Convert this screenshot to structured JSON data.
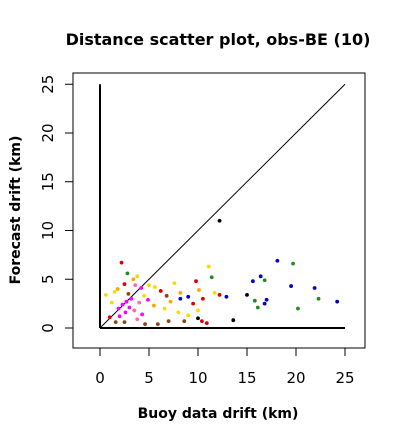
{
  "chart_data": {
    "type": "scatter",
    "title": "Distance scatter plot, obs-BE (10)",
    "xlabel": "Buoy data drift (km)",
    "ylabel": "Forecast drift (km)",
    "xlim": [
      -2.5,
      27
    ],
    "ylim": [
      -2.5,
      26
    ],
    "xticks": [
      0,
      5,
      10,
      15,
      20,
      25
    ],
    "yticks": [
      0,
      5,
      10,
      15,
      20,
      25
    ],
    "grid": false,
    "legend": "none",
    "reference_lines": [
      {
        "kind": "diagonal",
        "from": [
          0,
          0
        ],
        "to": [
          25,
          25
        ]
      },
      {
        "kind": "vertical-axis",
        "from": [
          0,
          0
        ],
        "to": [
          0,
          25
        ]
      },
      {
        "kind": "horizontal-axis",
        "from": [
          0,
          0
        ],
        "to": [
          25,
          0
        ]
      }
    ],
    "points": [
      {
        "x": 2.2,
        "y": 6.7,
        "color": "#dd0000"
      },
      {
        "x": 2.8,
        "y": 5.6,
        "color": "#228b22"
      },
      {
        "x": 2.5,
        "y": 4.5,
        "color": "#dd0000"
      },
      {
        "x": 1.8,
        "y": 4.0,
        "color": "#ffa500"
      },
      {
        "x": 1.5,
        "y": 3.7,
        "color": "#ffd700"
      },
      {
        "x": 2.9,
        "y": 3.5,
        "color": "#8b4513"
      },
      {
        "x": 3.4,
        "y": 5.0,
        "color": "#ffa500"
      },
      {
        "x": 3.8,
        "y": 5.3,
        "color": "#ffd700"
      },
      {
        "x": 3.6,
        "y": 4.4,
        "color": "#ff69b4"
      },
      {
        "x": 4.2,
        "y": 4.1,
        "color": "#ff00ff"
      },
      {
        "x": 3.2,
        "y": 3.0,
        "color": "#ff00ff"
      },
      {
        "x": 2.7,
        "y": 2.7,
        "color": "#ff00ff"
      },
      {
        "x": 2.3,
        "y": 2.4,
        "color": "#ff00ff"
      },
      {
        "x": 1.9,
        "y": 2.0,
        "color": "#ff00ff"
      },
      {
        "x": 3.0,
        "y": 2.1,
        "color": "#ff00ff"
      },
      {
        "x": 2.6,
        "y": 1.6,
        "color": "#ff00ff"
      },
      {
        "x": 2.0,
        "y": 1.2,
        "color": "#ff00ff"
      },
      {
        "x": 3.5,
        "y": 1.8,
        "color": "#ff69b4"
      },
      {
        "x": 4.0,
        "y": 2.6,
        "color": "#ff69b4"
      },
      {
        "x": 4.5,
        "y": 3.3,
        "color": "#ffd700"
      },
      {
        "x": 4.9,
        "y": 2.9,
        "color": "#ff00ff"
      },
      {
        "x": 4.3,
        "y": 1.4,
        "color": "#ff00ff"
      },
      {
        "x": 3.8,
        "y": 0.9,
        "color": "#ff69b4"
      },
      {
        "x": 4.6,
        "y": 0.4,
        "color": "#8b4513"
      },
      {
        "x": 2.5,
        "y": 0.6,
        "color": "#8b4513"
      },
      {
        "x": 1.6,
        "y": 0.6,
        "color": "#8b4513"
      },
      {
        "x": 1.0,
        "y": 1.1,
        "color": "#dd0000"
      },
      {
        "x": 0.6,
        "y": 3.4,
        "color": "#ffd700"
      },
      {
        "x": 1.2,
        "y": 2.6,
        "color": "#ffd700"
      },
      {
        "x": 5.0,
        "y": 4.4,
        "color": "#ffd700"
      },
      {
        "x": 5.6,
        "y": 4.2,
        "color": "#ffd700"
      },
      {
        "x": 6.2,
        "y": 3.8,
        "color": "#dd0000"
      },
      {
        "x": 6.8,
        "y": 3.3,
        "color": "#8b4513"
      },
      {
        "x": 5.5,
        "y": 2.3,
        "color": "#ffa500"
      },
      {
        "x": 6.6,
        "y": 2.0,
        "color": "#ffd700"
      },
      {
        "x": 7.6,
        "y": 4.6,
        "color": "#ffd700"
      },
      {
        "x": 8.2,
        "y": 3.6,
        "color": "#ffa500"
      },
      {
        "x": 7.2,
        "y": 2.7,
        "color": "#ffa500"
      },
      {
        "x": 8.0,
        "y": 1.6,
        "color": "#ffd700"
      },
      {
        "x": 7.0,
        "y": 0.7,
        "color": "#8b4513"
      },
      {
        "x": 5.9,
        "y": 0.4,
        "color": "#8b4513"
      },
      {
        "x": 8.6,
        "y": 0.7,
        "color": "#8b4513"
      },
      {
        "x": 9.0,
        "y": 1.3,
        "color": "#ffd700"
      },
      {
        "x": 9.5,
        "y": 2.5,
        "color": "#dd0000"
      },
      {
        "x": 10.0,
        "y": 1.8,
        "color": "#ffd700"
      },
      {
        "x": 10.5,
        "y": 3.0,
        "color": "#dd0000"
      },
      {
        "x": 9.8,
        "y": 4.8,
        "color": "#dd0000"
      },
      {
        "x": 10.1,
        "y": 3.9,
        "color": "#ffa500"
      },
      {
        "x": 10.4,
        "y": 0.7,
        "color": "#dd0000"
      },
      {
        "x": 10.9,
        "y": 0.5,
        "color": "#dd0000"
      },
      {
        "x": 11.1,
        "y": 6.3,
        "color": "#ffd700"
      },
      {
        "x": 11.4,
        "y": 5.2,
        "color": "#228b22"
      },
      {
        "x": 11.7,
        "y": 3.6,
        "color": "#ffd700"
      },
      {
        "x": 12.2,
        "y": 3.4,
        "color": "#dd0000"
      },
      {
        "x": 12.2,
        "y": 11.0,
        "color": "#000000"
      },
      {
        "x": 12.9,
        "y": 3.2,
        "color": "#0000cd"
      },
      {
        "x": 9.0,
        "y": 3.2,
        "color": "#0000cd"
      },
      {
        "x": 8.2,
        "y": 3.0,
        "color": "#0000cd"
      },
      {
        "x": 10.0,
        "y": 1.0,
        "color": "#000000"
      },
      {
        "x": 13.6,
        "y": 0.8,
        "color": "#000000"
      },
      {
        "x": 15.0,
        "y": 3.4,
        "color": "#000000"
      },
      {
        "x": 15.6,
        "y": 4.8,
        "color": "#0000cd"
      },
      {
        "x": 16.4,
        "y": 5.3,
        "color": "#0000cd"
      },
      {
        "x": 16.8,
        "y": 4.9,
        "color": "#228b22"
      },
      {
        "x": 15.8,
        "y": 2.8,
        "color": "#228b22"
      },
      {
        "x": 16.1,
        "y": 2.1,
        "color": "#228b22"
      },
      {
        "x": 16.8,
        "y": 2.5,
        "color": "#0000cd"
      },
      {
        "x": 17.0,
        "y": 2.9,
        "color": "#0000cd"
      },
      {
        "x": 18.1,
        "y": 6.9,
        "color": "#0000cd"
      },
      {
        "x": 19.7,
        "y": 6.6,
        "color": "#228b22"
      },
      {
        "x": 19.5,
        "y": 4.3,
        "color": "#0000cd"
      },
      {
        "x": 20.2,
        "y": 2.0,
        "color": "#228b22"
      },
      {
        "x": 21.9,
        "y": 4.1,
        "color": "#0000cd"
      },
      {
        "x": 22.3,
        "y": 3.0,
        "color": "#228b22"
      },
      {
        "x": 24.2,
        "y": 2.7,
        "color": "#0000cd"
      }
    ]
  }
}
